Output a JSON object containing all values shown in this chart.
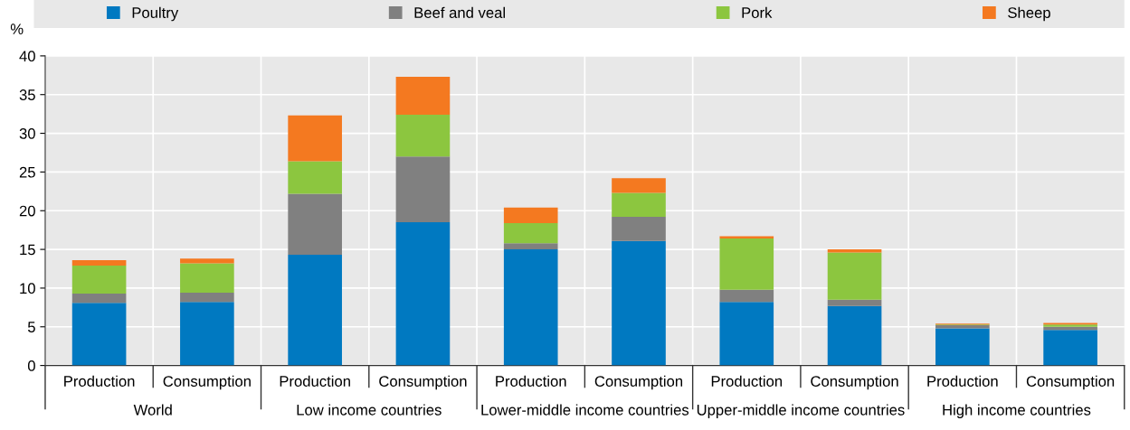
{
  "chart_data": {
    "type": "bar",
    "stacked": true,
    "ylabel": "%",
    "categories": [
      "Production",
      "Consumption",
      "Production",
      "Consumption",
      "Production",
      "Consumption",
      "Production",
      "Consumption",
      "Production",
      "Consumption"
    ],
    "annotations": [
      "World",
      "Low income countries",
      "Lower-middle income countries",
      "Upper-middle income countries",
      "High income countries"
    ],
    "series": [
      {
        "name": "Poultry",
        "color": "#0079c1",
        "values": [
          8.1,
          8.2,
          14.3,
          18.5,
          15.0,
          16.1,
          8.2,
          7.7,
          4.8,
          4.6
        ]
      },
      {
        "name": "Beef and veal",
        "color": "#808080",
        "values": [
          1.2,
          1.2,
          7.9,
          8.5,
          0.8,
          3.1,
          1.6,
          0.8,
          0.4,
          0.4
        ]
      },
      {
        "name": "Pork",
        "color": "#8cc63f",
        "values": [
          3.6,
          3.8,
          4.2,
          5.4,
          2.6,
          3.1,
          6.6,
          6.1,
          0.1,
          0.3
        ]
      },
      {
        "name": "Sheep",
        "color": "#f47920",
        "values": [
          0.7,
          0.6,
          5.9,
          4.9,
          2.0,
          1.9,
          0.3,
          0.4,
          0.1,
          0.2
        ]
      }
    ],
    "ylim": [
      0,
      40
    ],
    "yticks": [
      0,
      5,
      10,
      15,
      20,
      25,
      30,
      35,
      40
    ],
    "grid": true,
    "legend": "top"
  }
}
